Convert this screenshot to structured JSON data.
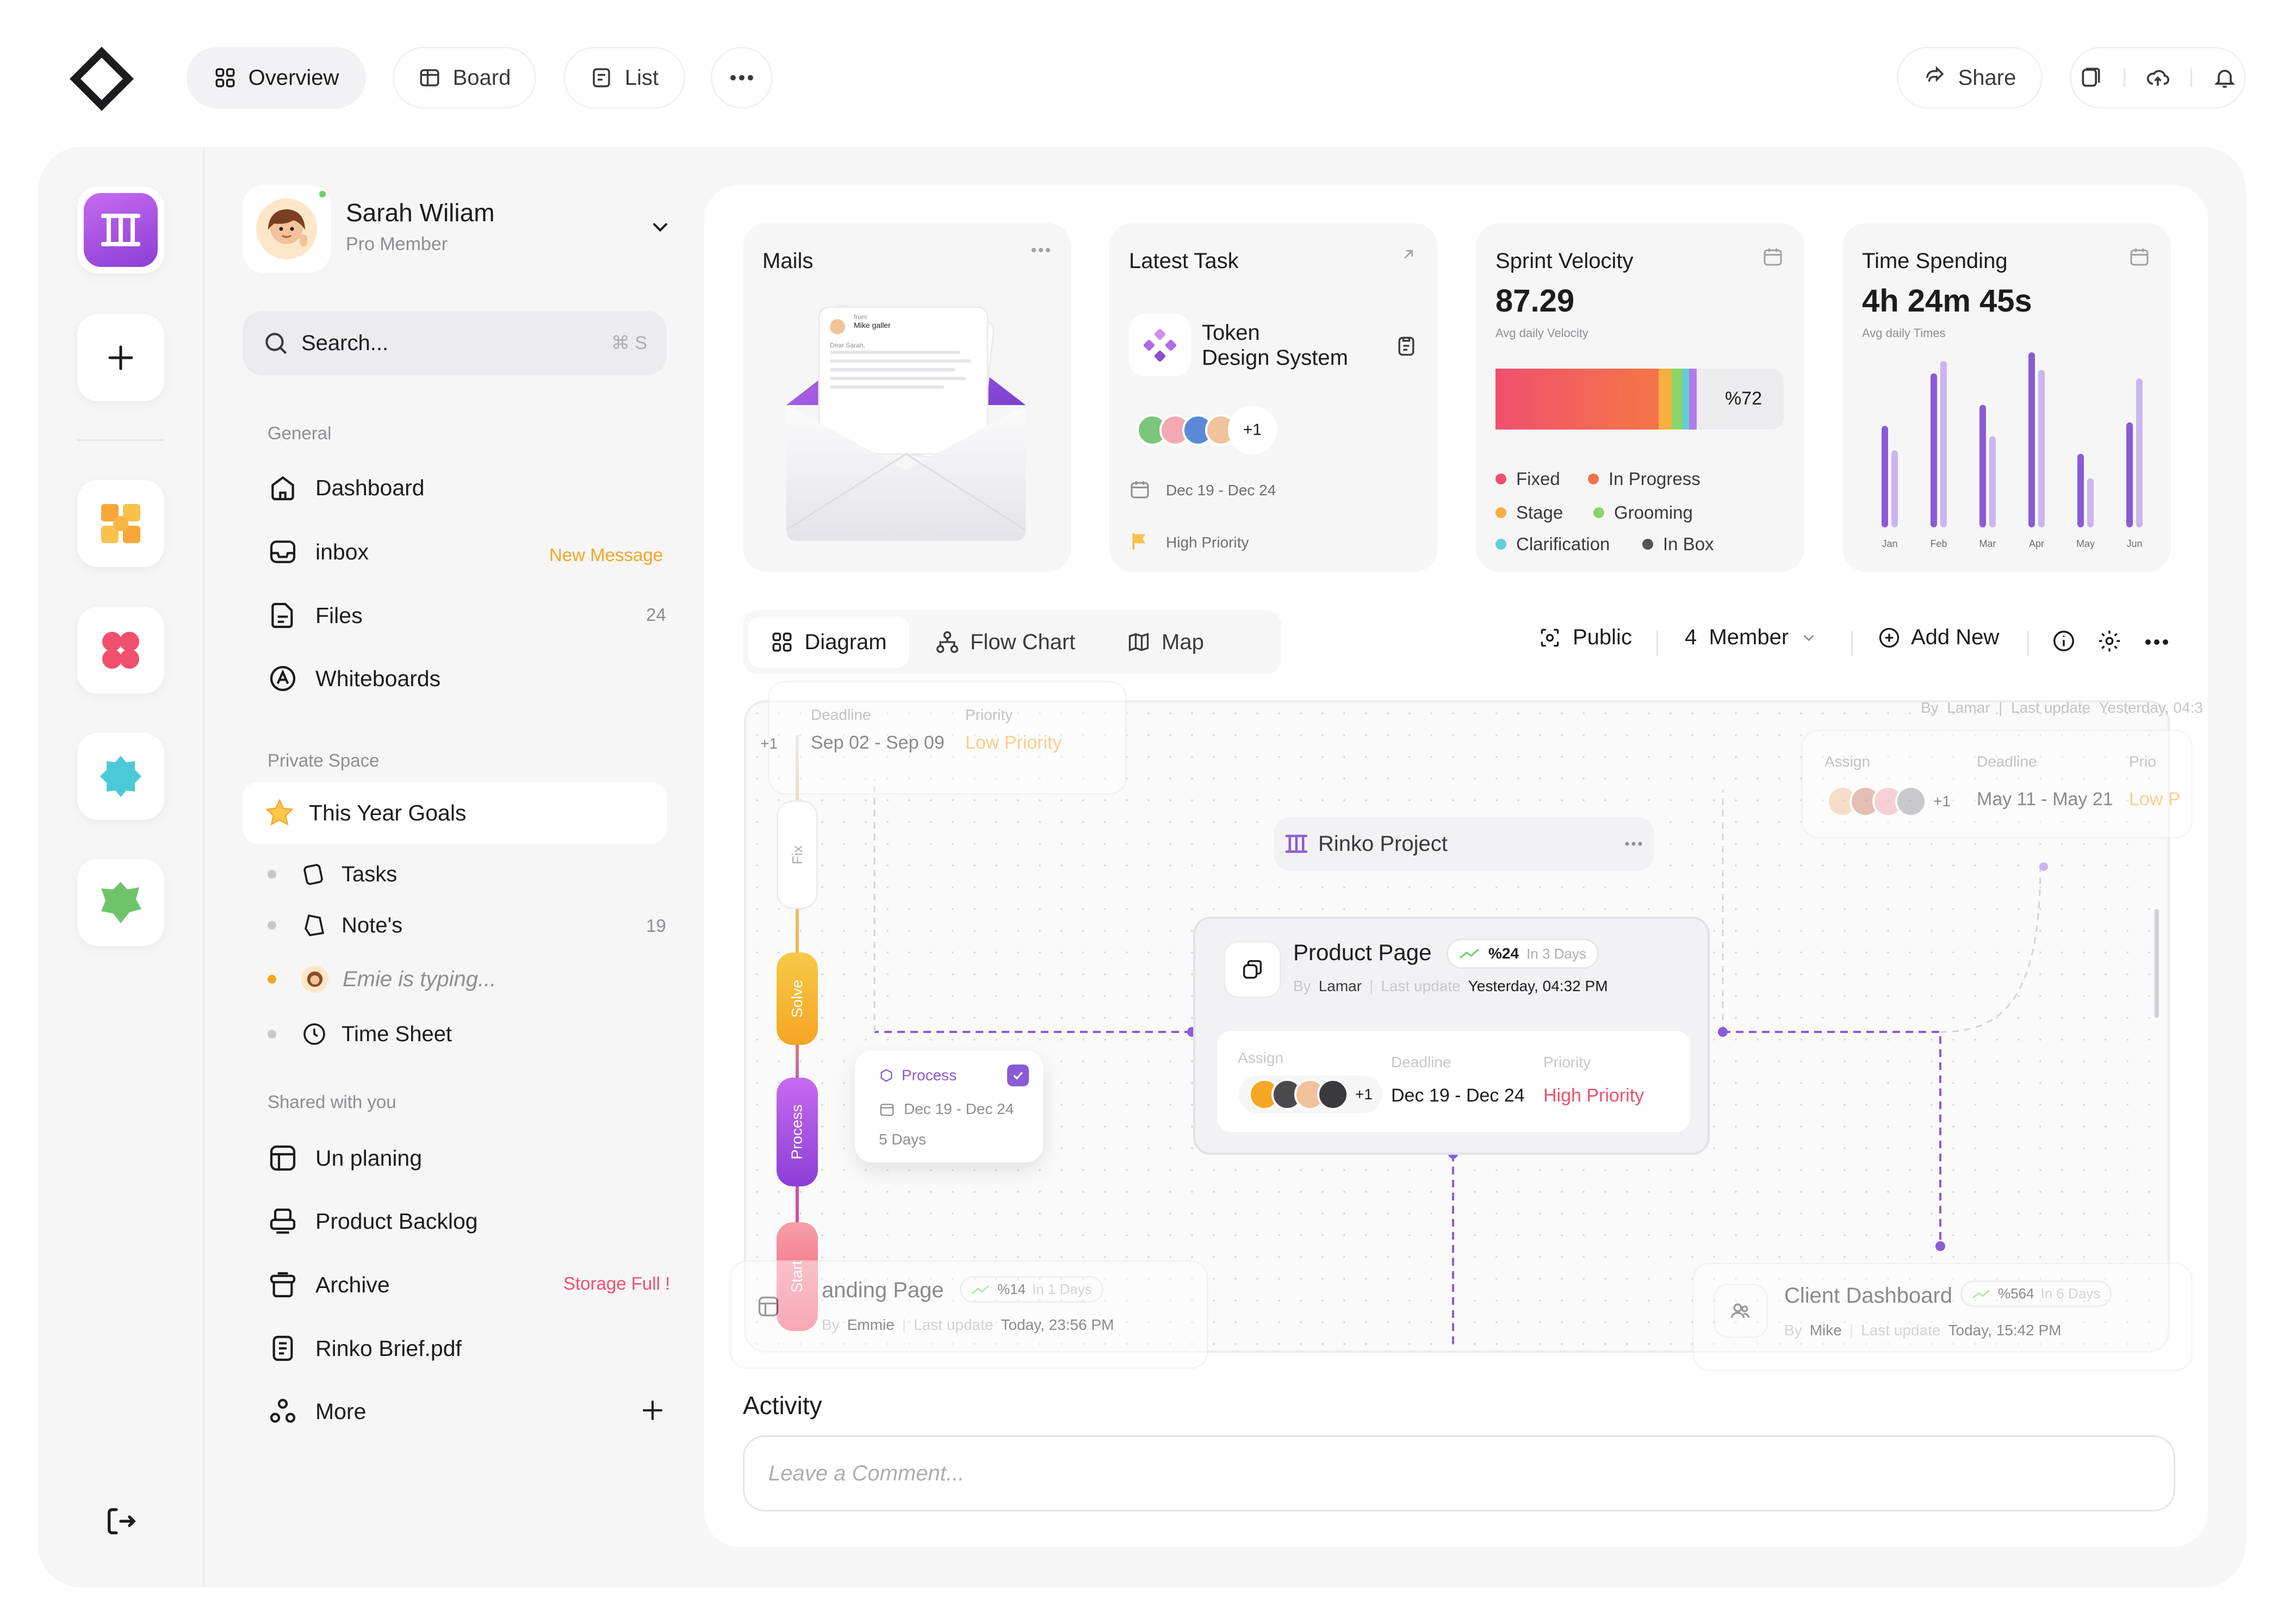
{
  "topbar": {
    "tabs": [
      {
        "label": "Overview",
        "icon": "grid-icon"
      },
      {
        "label": "Board",
        "icon": "board-icon"
      },
      {
        "label": "List",
        "icon": "list-icon"
      }
    ],
    "share_label": "Share"
  },
  "user": {
    "name": "Sarah Wiliam",
    "role": "Pro Member"
  },
  "search": {
    "placeholder": "Search...",
    "shortcut": "⌘ S"
  },
  "sidebar": {
    "general_label": "General",
    "general": [
      {
        "label": "Dashboard",
        "icon": "home-icon",
        "note": ""
      },
      {
        "label": "inbox",
        "icon": "inbox-icon",
        "note": "New Message"
      },
      {
        "label": "Files",
        "icon": "files-icon",
        "note": "24"
      },
      {
        "label": "Whiteboards",
        "icon": "whiteboard-icon",
        "note": ""
      }
    ],
    "private_label": "Private Space",
    "goals_label": "This Year Goals",
    "private": [
      {
        "label": "Tasks",
        "note": ""
      },
      {
        "label": "Note's",
        "note": "19"
      },
      {
        "label": "Emie is typing...",
        "note": ""
      },
      {
        "label": "Time Sheet",
        "note": ""
      }
    ],
    "shared_label": "Shared with you",
    "shared": [
      {
        "label": "Un planing",
        "note": ""
      },
      {
        "label": "Product Backlog",
        "note": ""
      },
      {
        "label": "Archive",
        "note": "Storage Full !"
      },
      {
        "label": "Rinko Brief.pdf",
        "note": ""
      },
      {
        "label": "More",
        "note": ""
      }
    ]
  },
  "cards": {
    "mails": {
      "title": "Mails",
      "from_label": "from",
      "from_name": "Mike galler",
      "greeting": "Dear Sarah,"
    },
    "latest_task": {
      "title": "Latest Task",
      "task_line1": "Token",
      "task_line2": "Design System",
      "extra": "+1",
      "date": "Dec 19 - Dec 24",
      "priority": "High Priority"
    },
    "sprint": {
      "title": "Sprint Velocity",
      "value": "87.29",
      "sub": "Avg daily Velocity",
      "percent": "%72",
      "legend": [
        {
          "label": "Fixed",
          "color": "#f0506e"
        },
        {
          "label": "In Progress",
          "color": "#f5734a"
        },
        {
          "label": "Stage",
          "color": "#f7b040"
        },
        {
          "label": "Grooming",
          "color": "#8bd46a"
        },
        {
          "label": "Clarification",
          "color": "#5fd0d8"
        },
        {
          "label": "In Box",
          "color": "#555559"
        }
      ]
    },
    "time": {
      "title": "Time Spending",
      "value": "4h 24m 45s",
      "sub": "Avg daily Times"
    }
  },
  "chart_data": {
    "type": "bar",
    "categories": [
      "Jan",
      "Feb",
      "Mar",
      "Apr",
      "May",
      "Jun"
    ],
    "series": [
      {
        "values": [
          58,
          88,
          70,
          100,
          42,
          60
        ]
      },
      {
        "values": [
          44,
          95,
          52,
          90,
          28,
          85
        ]
      }
    ],
    "ylim": [
      0,
      100
    ],
    "colors": [
      "#8a5bd6",
      "#c9b6ee"
    ]
  },
  "toolbar": {
    "tabs": [
      "Diagram",
      "Flow Chart",
      "Map"
    ],
    "visibility": "Public",
    "member": "4  Member",
    "add_new": "Add New"
  },
  "diagram": {
    "top_left": {
      "deadline_label": "Deadline",
      "priority_label": "Priority",
      "dates": "Sep 02 - Sep 09",
      "priority": "Low Priority",
      "extra": "+1"
    },
    "top_right": {
      "assign_label": "Assign",
      "deadline_label": "Deadline",
      "priority_label": "Prio",
      "dates": "May 11 - May 21",
      "priority": "Low P",
      "extra": "+1",
      "header": "By  Lamar  |  Last update  Yesterday, 04:3"
    },
    "group": "Rinko Project",
    "product": {
      "title": "Product Page",
      "growth": "%24",
      "days": "In 3 Days",
      "by_label": "By",
      "by": "Lamar",
      "update_label": "Last update",
      "update": "Yesterday, 04:32 PM",
      "assign_label": "Assign",
      "deadline_label": "Deadline",
      "priority_label": "Priority",
      "dates": "Dec 19 - Dec 24",
      "priority": "High Priority",
      "extra": "+1"
    },
    "process_card": {
      "status": "Process",
      "dates": "Dec 19 - Dec 24",
      "duration": "5 Days"
    },
    "stages": [
      "Fix",
      "Solve",
      "Process",
      "Start"
    ],
    "landing": {
      "title": "anding Page",
      "growth": "%14",
      "days": "In 1 Days",
      "by_label": "By",
      "by": "Emmie",
      "update_label": "Last update",
      "update": "Today, 23:56 PM"
    },
    "client": {
      "title": "Client Dashboard",
      "growth": "%564",
      "days": "In 6 Days",
      "by_label": "By",
      "by": "Mike",
      "update_label": "Last update",
      "update": "Today, 15:42 PM"
    }
  },
  "activity": {
    "title": "Activity",
    "placeholder": "Leave a Comment..."
  },
  "colors": {
    "accent": "#8a5bd6",
    "warning": "#f5a623",
    "danger": "#f0506e",
    "page": "#f6f6f7"
  }
}
